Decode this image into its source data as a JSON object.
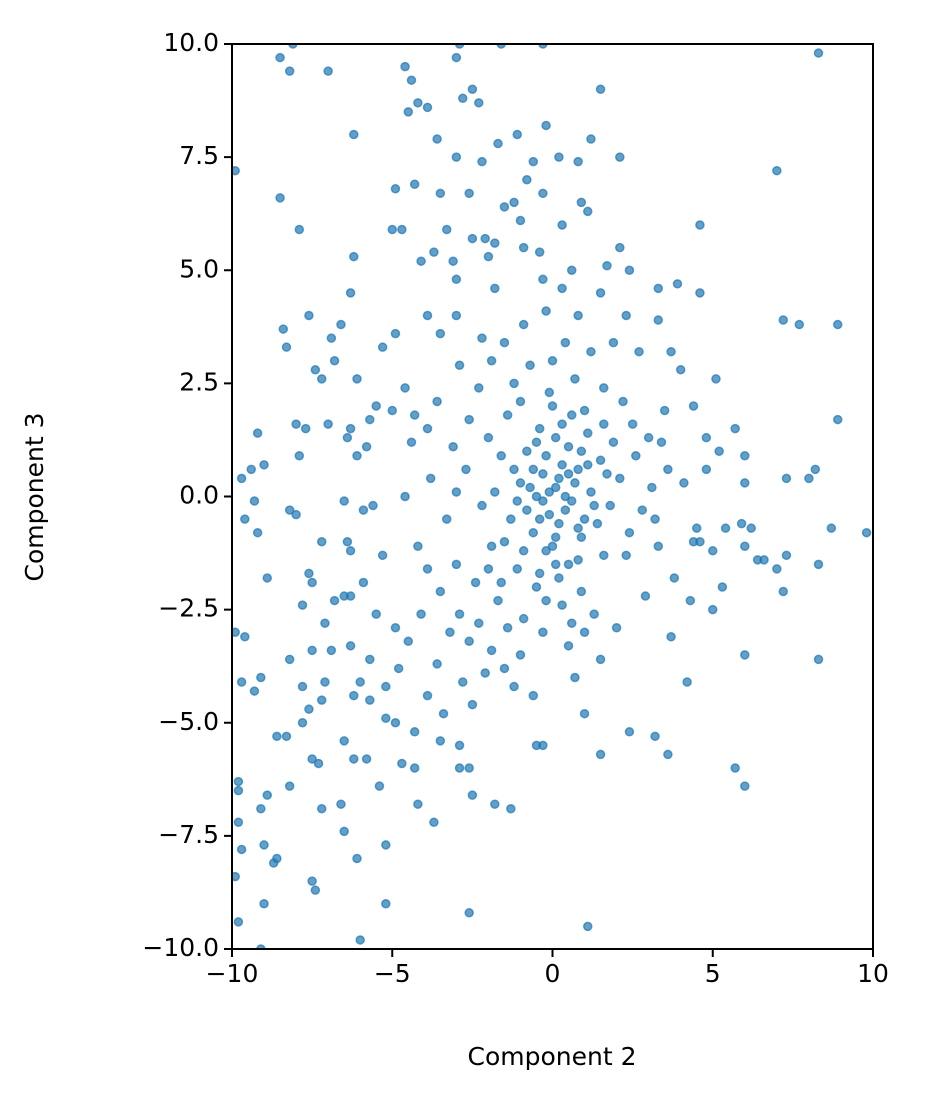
{
  "chart_data": {
    "type": "scatter",
    "xlabel": "Component 2",
    "ylabel": "Component 3",
    "color": "#1f77b4",
    "xlim": [
      -10,
      10
    ],
    "ylim": [
      -10,
      10
    ],
    "xticks": [
      {
        "value": -10,
        "label": "−10"
      },
      {
        "value": -5,
        "label": "−5"
      },
      0,
      5,
      10
    ],
    "yticks": [
      {
        "value": -10,
        "label": "−10.0"
      },
      {
        "value": -7.5,
        "label": "−7.5"
      },
      {
        "value": -5,
        "label": "−5.0"
      },
      {
        "value": -2.5,
        "label": "−2.5"
      },
      {
        "value": 0,
        "label": "0.0"
      },
      2.5,
      {
        "value": 5,
        "label": "5.0"
      },
      7.5,
      {
        "value": 10,
        "label": "10.0"
      }
    ],
    "x": [
      -8.5,
      -8.2,
      -7.0,
      -8.1,
      -4.6,
      -4.4,
      -4.5,
      -4.2,
      -3.9,
      -3.0,
      -2.9,
      -2.5,
      -2.8,
      -2.3,
      -1.6,
      -0.3,
      1.5,
      8.3,
      -9.9,
      -6.2,
      -8.5,
      -7.9,
      -0.2,
      1.2,
      0.8,
      2.1,
      7.0,
      -3.6,
      -3.0,
      -2.2,
      -1.1,
      -1.7,
      -0.6,
      0.2,
      -0.8,
      -4.9,
      -4.3,
      -3.5,
      -2.6,
      -1.5,
      -1.2,
      -0.3,
      0.9,
      1.1,
      -1.0,
      0.3,
      4.6,
      -5.0,
      -4.7,
      -3.3,
      -2.5,
      -2.1,
      -1.8,
      -0.9,
      -0.4,
      -6.2,
      -4.1,
      -3.1,
      -2.0,
      2.1,
      2.4,
      3.9,
      3.3,
      4.6,
      -6.3,
      -0.3,
      0.6,
      1.5,
      -7.6,
      -8.4,
      -8.3,
      -6.6,
      -6.9,
      -3.5,
      -4.9,
      -5.3,
      -3.9,
      -3.0,
      2.3,
      3.3,
      7.2,
      8.9,
      7.7,
      -7.4,
      -7.2,
      -6.8,
      -6.1,
      -5.5,
      -4.6,
      3.7,
      4.0,
      5.1,
      -8.0,
      -7.7,
      -7.0,
      -6.3,
      -9.2,
      -5.7,
      -4.3,
      -3.9,
      4.4,
      5.7,
      3.4,
      8.9,
      -9.7,
      -9.4,
      -9.0,
      -7.9,
      -6.4,
      -6.1,
      5.2,
      6.0,
      4.8,
      7.3,
      6.0,
      8.0,
      8.2,
      -9.6,
      -9.2,
      -9.3,
      -8.2,
      -8.0,
      -6.5,
      -5.9,
      4.5,
      5.4,
      5.9,
      6.2,
      8.7,
      9.8,
      -6.4,
      -6.3,
      -7.2,
      -8.9,
      -7.6,
      -7.5,
      -5.9,
      -6.3,
      4.6,
      6.0,
      6.6,
      6.4,
      7.0,
      7.3,
      8.3,
      7.2,
      -7.8,
      -7.1,
      -6.8,
      -6.5,
      -9.9,
      -9.6,
      -7.5,
      -6.9,
      -8.2,
      -6.3,
      -5.7,
      -9.7,
      -9.3,
      -9.1,
      -7.8,
      -7.6,
      -7.2,
      -7.1,
      -6.2,
      -6.0,
      -5.7,
      -5.2,
      4.2,
      6.0,
      8.3,
      5.0,
      4.3,
      -8.6,
      -8.3,
      -7.8,
      -7.5,
      -7.3,
      -6.5,
      -6.2,
      -5.8,
      -5.2,
      -4.9,
      -4.7,
      -4.3,
      -3.5,
      -2.9,
      -2.6,
      -2.9,
      -0.5,
      -0.3,
      1.5,
      3.6,
      5.7,
      6.0,
      2.4,
      3.2,
      1.0,
      -9.8,
      -9.8,
      -8.9,
      -8.2,
      -9.1,
      -7.2,
      -6.6,
      -5.4,
      -4.2,
      -2.5,
      -1.8,
      -1.3,
      -9.8,
      -9.7,
      -8.7,
      -8.6,
      -9.0,
      -7.5,
      -7.4,
      -6.5,
      -6.1,
      -5.2,
      -3.7,
      -9.9,
      -9.0,
      -9.8,
      -5.2,
      -2.6,
      1.1,
      -9.1,
      -6.0,
      0.1,
      -0.3,
      0.4,
      -0.6,
      0.8,
      -0.2,
      1.2,
      -1.0,
      0.5,
      -0.4,
      0.9,
      -1.3,
      1.5,
      0.2,
      -0.8,
      1.8,
      -1.6,
      0.6,
      -0.1,
      0.3,
      -1.1,
      1.1,
      -1.9,
      2.1,
      -0.5,
      0.7,
      -1.4,
      1.6,
      -2.2,
      2.4,
      0.0,
      -0.7,
      0.9,
      -1.7,
      1.9,
      -2.0,
      2.6,
      -0.9,
      0.4,
      -1.2,
      1.3,
      -2.4,
      2.8,
      -2.7,
      3.1,
      -0.3,
      0.2,
      -0.2,
      0.6,
      -0.5,
      0.3,
      -0.8,
      1.0,
      -0.1,
      0.7,
      -0.6,
      0.1,
      1.4,
      -1.5,
      1.7,
      -1.8,
      0.5,
      -0.4,
      1.0,
      -1.0,
      0.8,
      -2.3,
      -2.6,
      -1.9,
      -2.9,
      -3.2,
      -1.5,
      -2.1,
      -3.5,
      -3.0,
      -2.8,
      -1.2,
      -3.6,
      -2.5,
      -3.9,
      -1.0,
      0.5,
      -0.2,
      0.8,
      -0.9,
      0.3,
      1.2,
      -1.5,
      1.6,
      -1.9,
      2.2,
      -2.3,
      2.5,
      -2.6,
      3.0,
      -3.1,
      3.3,
      -3.3,
      3.6,
      -3.8,
      3.8,
      -3.9,
      2.9,
      -2.9,
      2.0,
      -2.2,
      1.5,
      -4.4,
      4.1,
      -4.2,
      4.4,
      -4.6,
      3.5,
      -3.6,
      0.1,
      -0.2,
      0.6,
      0.0,
      0.4,
      -0.3,
      0.2,
      -0.1,
      0.5,
      -0.4,
      0.8,
      -0.7,
      1.1,
      -0.9,
      1.3,
      -1.2,
      0.3,
      -0.5,
      0.9,
      -1.1,
      1.6,
      -1.6,
      0.0,
      0.1,
      -4.9,
      -4.1,
      -5.3,
      -5.0,
      -4.8,
      -3.4,
      -4.3,
      5.0,
      4.8,
      3.7,
      -0.6,
      0.7,
      1.9,
      -3.0,
      -1.8,
      -3.7,
      1.7,
      -5.6,
      -5.8,
      -5.5,
      -4.5,
      5.3,
      2.7,
      -3.0,
      3.2,
      -1.4,
      1.0,
      -2.0,
      2.3
    ],
    "values": [
      9.7,
      9.4,
      9.4,
      10.0,
      9.5,
      9.2,
      8.5,
      8.7,
      8.6,
      9.7,
      10.0,
      9.0,
      8.8,
      8.7,
      10.0,
      10.0,
      9.0,
      9.8,
      7.2,
      8.0,
      6.6,
      5.9,
      8.2,
      7.9,
      7.4,
      7.5,
      7.2,
      7.9,
      7.5,
      7.4,
      8.0,
      7.8,
      7.4,
      7.5,
      7.0,
      6.8,
      6.9,
      6.7,
      6.7,
      6.4,
      6.5,
      6.7,
      6.5,
      6.3,
      6.1,
      6.0,
      6.0,
      5.9,
      5.9,
      5.9,
      5.7,
      5.7,
      5.6,
      5.5,
      5.4,
      5.3,
      5.2,
      5.2,
      5.3,
      5.5,
      5.0,
      4.7,
      4.6,
      4.5,
      4.5,
      4.8,
      5.0,
      4.5,
      4.0,
      3.7,
      3.3,
      3.8,
      3.5,
      3.6,
      3.6,
      3.3,
      4.0,
      4.0,
      4.0,
      3.9,
      3.9,
      3.8,
      3.8,
      2.8,
      2.6,
      3.0,
      2.6,
      2.0,
      2.4,
      3.2,
      2.8,
      2.6,
      1.6,
      1.5,
      1.6,
      1.5,
      1.4,
      1.7,
      1.8,
      1.5,
      2.0,
      1.5,
      1.2,
      1.7,
      0.4,
      0.6,
      0.7,
      0.9,
      1.3,
      0.9,
      1.0,
      0.9,
      0.6,
      0.4,
      0.3,
      0.4,
      0.6,
      -0.5,
      -0.8,
      -0.1,
      -0.3,
      -0.4,
      -0.1,
      -0.3,
      -0.7,
      -0.7,
      -0.6,
      -0.7,
      -0.7,
      -0.8,
      -1.0,
      -1.2,
      -1.0,
      -1.8,
      -1.7,
      -1.9,
      -1.9,
      -2.2,
      -1.0,
      -1.1,
      -1.4,
      -1.4,
      -1.6,
      -1.3,
      -1.5,
      -2.1,
      -2.4,
      -2.8,
      -2.3,
      -2.2,
      -3.0,
      -3.1,
      -3.4,
      -3.4,
      -3.6,
      -3.3,
      -3.6,
      -4.1,
      -4.3,
      -4.0,
      -4.2,
      -4.7,
      -4.5,
      -4.1,
      -4.4,
      -4.1,
      -4.5,
      -4.2,
      -4.1,
      -3.5,
      -3.6,
      -2.5,
      -2.3,
      -5.3,
      -5.3,
      -5.0,
      -5.8,
      -5.9,
      -5.4,
      -5.8,
      -5.8,
      -4.9,
      -5.0,
      -5.9,
      -6.0,
      -5.4,
      -5.5,
      -6.0,
      -6.0,
      -5.5,
      -5.5,
      -5.7,
      -5.7,
      -6.0,
      -6.4,
      -5.2,
      -5.3,
      -4.8,
      -6.3,
      -6.5,
      -6.6,
      -6.4,
      -6.9,
      -6.9,
      -6.8,
      -6.4,
      -6.8,
      -6.6,
      -6.8,
      -6.9,
      -7.2,
      -7.8,
      -8.1,
      -8.0,
      -7.7,
      -8.5,
      -8.7,
      -7.4,
      -8.0,
      -7.7,
      -7.2,
      -8.4,
      -9.0,
      -9.4,
      -9.0,
      -9.2,
      -9.5,
      -10.0,
      -9.8,
      0.2,
      0.5,
      -0.3,
      -0.8,
      0.6,
      -1.2,
      0.1,
      0.3,
      1.1,
      1.5,
      -0.9,
      -0.5,
      0.8,
      -1.8,
      1.0,
      -0.2,
      0.9,
      1.8,
      2.3,
      -2.4,
      -1.6,
      1.4,
      -1.1,
      0.4,
      -2.0,
      2.6,
      1.8,
      -1.3,
      -0.2,
      -0.8,
      3.0,
      2.9,
      -2.1,
      -2.3,
      1.2,
      1.3,
      0.9,
      -2.7,
      3.4,
      2.5,
      -2.6,
      -1.9,
      -0.3,
      0.6,
      0.2,
      -3.0,
      -0.6,
      0.9,
      -0.1,
      0.0,
      0.7,
      -0.3,
      -0.5,
      -0.4,
      0.3,
      0.6,
      -0.9,
      -0.6,
      -1.0,
      0.5,
      0.1,
      -1.5,
      -1.7,
      1.9,
      2.1,
      -1.4,
      -2.8,
      -3.2,
      -3.4,
      -2.6,
      -3.0,
      -3.8,
      -3.9,
      -2.1,
      -1.5,
      -4.1,
      -4.2,
      -3.7,
      -4.6,
      -4.4,
      -3.5,
      -3.3,
      4.1,
      4.0,
      3.8,
      4.6,
      3.2,
      3.4,
      2.4,
      3.0,
      2.1,
      2.4,
      1.6,
      1.7,
      1.3,
      1.1,
      -1.1,
      -0.5,
      0.6,
      0.4,
      -1.8,
      -1.6,
      -2.2,
      2.9,
      -2.9,
      3.5,
      -3.6,
      1.2,
      0.3,
      -1.1,
      -1.0,
      0.0,
      1.9,
      2.1,
      1.3,
      -2.3,
      -2.8,
      -1.1,
      0.0,
      -0.1,
      0.4,
      0.1,
      0.5,
      -0.5,
      -0.7,
      0.2,
      0.7,
      -1.2,
      -0.2,
      0.6,
      1.6,
      1.2,
      1.0,
      -0.1,
      1.6,
      -1.9,
      2.0,
      -1.5,
      -2.9,
      -2.6,
      -1.3,
      1.9,
      -3.8,
      -4.8,
      -5.2,
      -1.2,
      1.3,
      -3.1,
      -4.4,
      -4.0,
      3.4,
      4.8,
      4.6,
      5.4,
      5.1,
      -0.2,
      1.1,
      -2.6,
      -3.2,
      -2.0,
      3.2,
      0.1,
      -0.5,
      -2.9,
      -3.0,
      -1.6,
      -1.3
    ]
  }
}
